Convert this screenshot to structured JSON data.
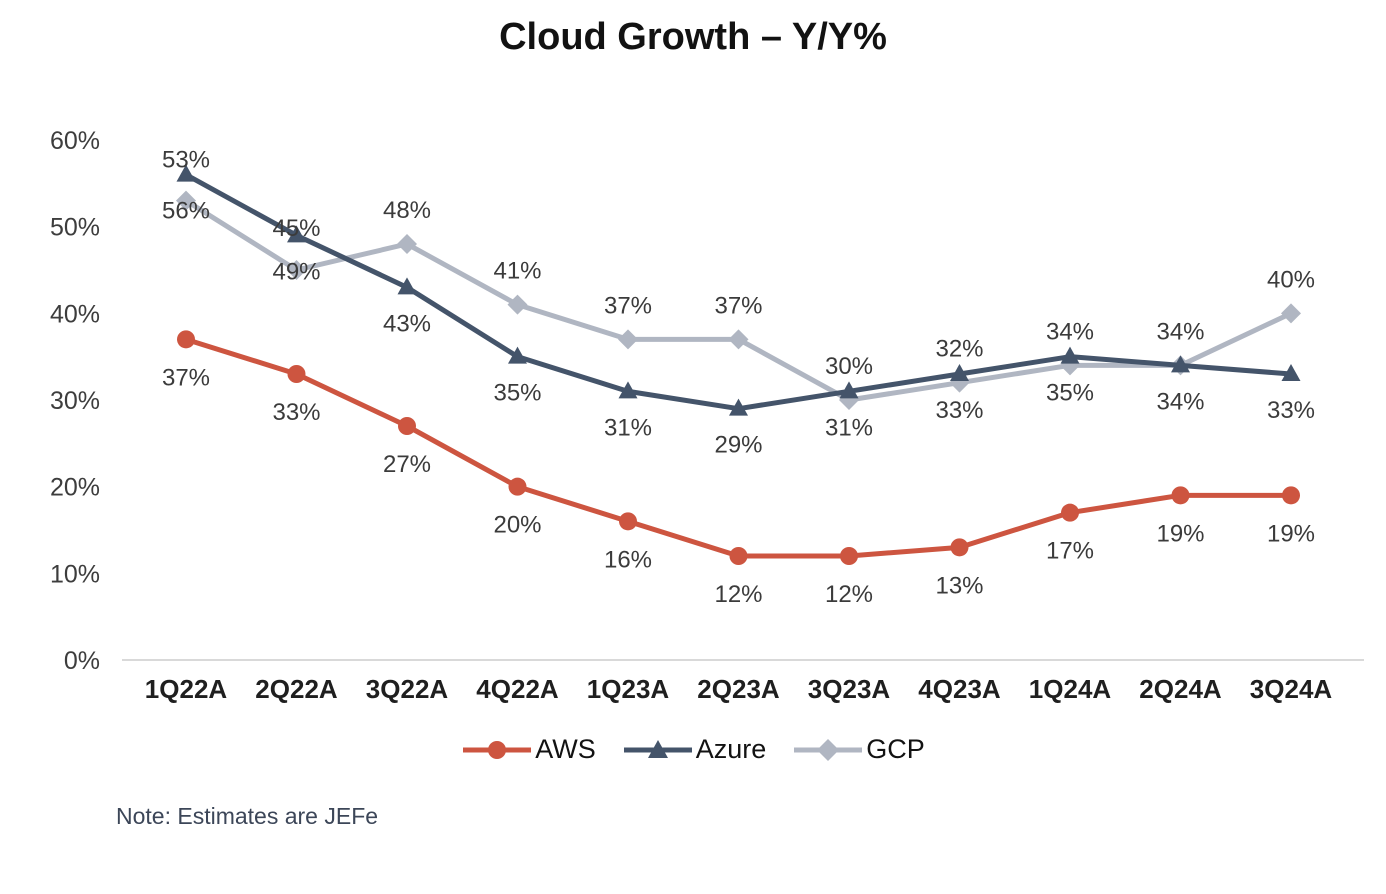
{
  "page": {
    "title": "Cloud Growth – Y/Y%",
    "note": "Note: Estimates are JEFe"
  },
  "chart_data": {
    "type": "line",
    "title": "Cloud Growth – Y/Y%",
    "categories": [
      "1Q22A",
      "2Q22A",
      "3Q22A",
      "4Q22A",
      "1Q23A",
      "2Q23A",
      "3Q23A",
      "4Q23A",
      "1Q24A",
      "2Q24A",
      "3Q24A"
    ],
    "series": [
      {
        "name": "AWS",
        "color": "#cd5540",
        "marker": "circle",
        "label_position": "below",
        "values": [
          37,
          33,
          27,
          20,
          16,
          12,
          12,
          13,
          17,
          19,
          19
        ]
      },
      {
        "name": "Azure",
        "color": "#44546a",
        "marker": "triangle",
        "label_position": "below",
        "values": [
          56,
          49,
          43,
          35,
          31,
          29,
          31,
          33,
          35,
          34,
          33
        ]
      },
      {
        "name": "GCP",
        "color": "#b0b6c2",
        "marker": "diamond",
        "label_position": "above",
        "values": [
          53,
          45,
          48,
          41,
          37,
          37,
          30,
          32,
          34,
          34,
          40
        ]
      }
    ],
    "yticks": [
      "0%",
      "10%",
      "20%",
      "30%",
      "40%",
      "50%",
      "60%"
    ],
    "ylim": [
      0,
      60
    ],
    "value_suffix": "%",
    "grid": false,
    "legend_position": "bottom",
    "axis_line_color": "#d9d9d9",
    "tick_label_color": "#3d3d3d",
    "category_label_color": "#1f1f1f",
    "data_label_color": "#3b3b3b",
    "note": "Note: Estimates are JEFe"
  }
}
